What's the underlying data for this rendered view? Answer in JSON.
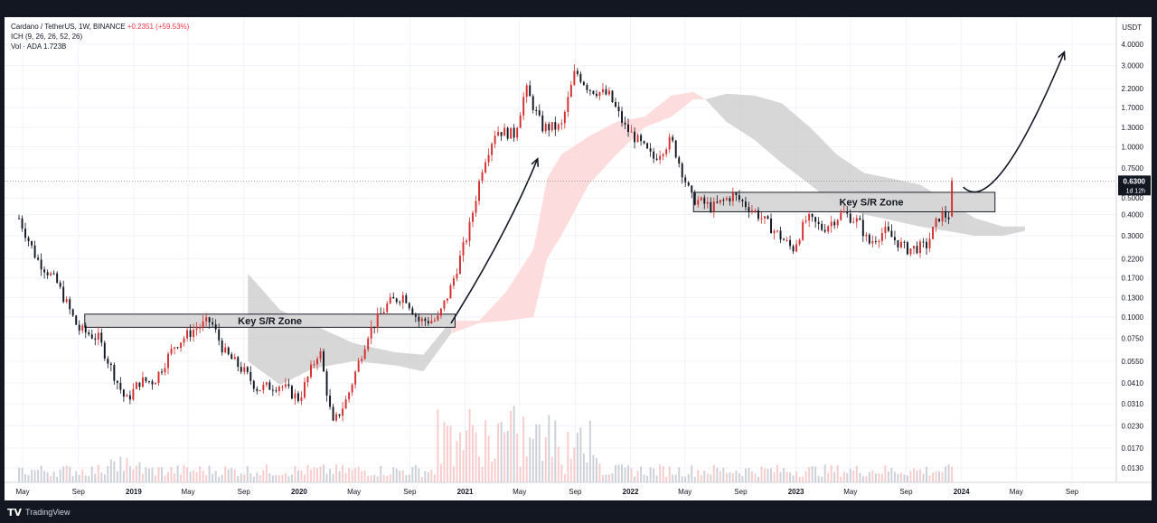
{
  "header": {
    "symbol_line": "Cardano / TetherUS, 1W, BINANCE",
    "change": "+0.2351 (+59.53%)",
    "ichimoku": "ICH (9, 26, 26, 52, 26)",
    "volume": "Vol · ADA  1.723B"
  },
  "footer": {
    "brand": "TradingView"
  },
  "price_axis": {
    "currency": "USDT",
    "ticks": [
      "4.0000",
      "3.0000",
      "2.2000",
      "1.7000",
      "1.3000",
      "1.0000",
      "0.7500",
      "0.5000",
      "0.4000",
      "0.3000",
      "0.2200",
      "0.1700",
      "0.1300",
      "0.1000",
      "0.0750",
      "0.0550",
      "0.0410",
      "0.0310",
      "0.0230",
      "0.0170",
      "0.0130"
    ],
    "last_price": "0.6300",
    "countdown": "1d 12h"
  },
  "time_axis": {
    "ticks": [
      {
        "label": "May",
        "bold": false
      },
      {
        "label": "Sep",
        "bold": false
      },
      {
        "label": "2019",
        "bold": true
      },
      {
        "label": "May",
        "bold": false
      },
      {
        "label": "Sep",
        "bold": false
      },
      {
        "label": "2020",
        "bold": true
      },
      {
        "label": "May",
        "bold": false
      },
      {
        "label": "Sep",
        "bold": false
      },
      {
        "label": "2021",
        "bold": true
      },
      {
        "label": "May",
        "bold": false
      },
      {
        "label": "Sep",
        "bold": false
      },
      {
        "label": "2022",
        "bold": true
      },
      {
        "label": "May",
        "bold": false
      },
      {
        "label": "Sep",
        "bold": false
      },
      {
        "label": "2023",
        "bold": true
      },
      {
        "label": "May",
        "bold": false
      },
      {
        "label": "Sep",
        "bold": false
      },
      {
        "label": "2024",
        "bold": true
      },
      {
        "label": "May",
        "bold": false
      },
      {
        "label": "Sep",
        "bold": false
      }
    ]
  },
  "annotations": {
    "zone_left": "Key S/R Zone",
    "zone_right": "Key S/R Zone"
  },
  "colors": {
    "up": "#089981",
    "down": "#f23645",
    "candle_up": "#131722",
    "candle_down": "#d32f2f",
    "cloud_bull": "#fcd3d6",
    "cloud_bear": "#c9c9c9",
    "zone_fill": "#d6d6d6",
    "grid": "#f0f3fa"
  },
  "chart_data": {
    "type": "candlestick",
    "title": "Cardano / TetherUS, 1W, BINANCE",
    "y_scale": "log",
    "ylim": [
      0.011,
      5.0
    ],
    "x_range": [
      "2018-05",
      "2024-10"
    ],
    "price_path": [
      [
        "2018-04-23",
        0.38
      ],
      [
        "2018-06-01",
        0.22
      ],
      [
        "2018-07-15",
        0.16
      ],
      [
        "2018-09-01",
        0.085
      ],
      [
        "2018-10-15",
        0.075
      ],
      [
        "2018-11-20",
        0.045
      ],
      [
        "2018-12-15",
        0.032
      ],
      [
        "2019-01-15",
        0.042
      ],
      [
        "2019-02-15",
        0.042
      ],
      [
        "2019-04-01",
        0.068
      ],
      [
        "2019-05-15",
        0.085
      ],
      [
        "2019-06-20",
        0.095
      ],
      [
        "2019-07-20",
        0.062
      ],
      [
        "2019-09-01",
        0.048
      ],
      [
        "2019-10-01",
        0.038
      ],
      [
        "2019-11-20",
        0.04
      ],
      [
        "2020-01-01",
        0.033
      ],
      [
        "2020-02-15",
        0.065
      ],
      [
        "2020-03-15",
        0.023
      ],
      [
        "2020-04-15",
        0.033
      ],
      [
        "2020-06-01",
        0.08
      ],
      [
        "2020-07-15",
        0.12
      ],
      [
        "2020-08-20",
        0.135
      ],
      [
        "2020-09-20",
        0.095
      ],
      [
        "2020-11-01",
        0.096
      ],
      [
        "2020-12-01",
        0.15
      ],
      [
        "2021-01-10",
        0.33
      ],
      [
        "2021-02-10",
        0.8
      ],
      [
        "2021-03-10",
        1.25
      ],
      [
        "2021-04-20",
        1.18
      ],
      [
        "2021-05-15",
        2.2
      ],
      [
        "2021-06-20",
        1.3
      ],
      [
        "2021-08-01",
        1.3
      ],
      [
        "2021-09-01",
        2.8
      ],
      [
        "2021-10-01",
        2.2
      ],
      [
        "2021-11-15",
        2.0
      ],
      [
        "2021-12-20",
        1.3
      ],
      [
        "2022-01-15",
        1.1
      ],
      [
        "2022-02-20",
        0.85
      ],
      [
        "2022-04-01",
        1.1
      ],
      [
        "2022-05-15",
        0.5
      ],
      [
        "2022-07-01",
        0.44
      ],
      [
        "2022-08-15",
        0.52
      ],
      [
        "2022-10-01",
        0.42
      ],
      [
        "2022-11-15",
        0.32
      ],
      [
        "2022-12-25",
        0.25
      ],
      [
        "2023-01-25",
        0.38
      ],
      [
        "2023-03-01",
        0.33
      ],
      [
        "2023-04-15",
        0.41
      ],
      [
        "2023-05-20",
        0.36
      ],
      [
        "2023-06-10",
        0.27
      ],
      [
        "2023-07-15",
        0.32
      ],
      [
        "2023-09-01",
        0.25
      ],
      [
        "2023-10-15",
        0.26
      ],
      [
        "2023-11-15",
        0.4
      ],
      [
        "2023-12-04",
        0.39
      ],
      [
        "2023-12-11",
        0.63
      ]
    ],
    "ichimoku_cloud": [
      [
        "2019-09-10",
        0.18,
        0.055
      ],
      [
        "2019-11-20",
        0.11,
        0.04
      ],
      [
        "2020-02-01",
        0.09,
        0.05
      ],
      [
        "2020-05-01",
        0.07,
        0.055
      ],
      [
        "2020-08-01",
        0.062,
        0.052
      ],
      [
        "2020-10-01",
        0.06,
        0.048
      ],
      [
        "2020-12-01",
        0.095,
        0.08
      ],
      [
        "2021-02-01",
        0.095,
        0.092
      ],
      [
        "2021-04-01",
        0.14,
        0.095
      ],
      [
        "2021-06-01",
        0.25,
        0.1
      ],
      [
        "2021-07-01",
        0.65,
        0.22
      ],
      [
        "2021-08-01",
        0.9,
        0.3
      ],
      [
        "2021-10-01",
        1.15,
        0.6
      ],
      [
        "2021-12-01",
        1.4,
        0.9
      ],
      [
        "2022-02-01",
        1.5,
        1.3
      ],
      [
        "2022-04-01",
        2.0,
        1.5
      ],
      [
        "2022-05-20",
        2.1,
        1.9
      ],
      [
        "2022-06-15",
        1.9,
        1.9
      ],
      [
        "2022-08-01",
        2.05,
        1.4
      ],
      [
        "2022-10-01",
        2.0,
        1.1
      ],
      [
        "2022-12-01",
        1.8,
        0.8
      ],
      [
        "2023-02-01",
        1.3,
        0.6
      ],
      [
        "2023-04-01",
        0.9,
        0.45
      ],
      [
        "2023-06-01",
        0.7,
        0.4
      ],
      [
        "2023-08-01",
        0.65,
        0.37
      ],
      [
        "2023-10-01",
        0.6,
        0.34
      ],
      [
        "2023-12-01",
        0.48,
        0.32
      ],
      [
        "2024-02-01",
        0.38,
        0.3
      ],
      [
        "2024-04-01",
        0.34,
        0.3
      ],
      [
        "2024-05-20",
        0.34,
        0.32
      ]
    ],
    "key_zones": [
      {
        "label": "Key S/R Zone",
        "start": "2018-09-15",
        "end": "2020-12-10",
        "low": 0.087,
        "high": 0.104
      },
      {
        "label": "Key S/R Zone",
        "start": "2022-05-20",
        "end": "2024-03-15",
        "low": 0.415,
        "high": 0.54
      }
    ],
    "arrows": [
      {
        "from": [
          "2020-12-01",
          0.092
        ],
        "via": [
          "2021-04-01",
          0.3
        ],
        "to": [
          "2021-06-10",
          0.85
        ]
      },
      {
        "from": [
          "2024-01-05",
          0.58
        ],
        "via": [
          "2024-03-15",
          0.38
        ],
        "to": [
          "2024-08-15",
          3.6
        ]
      }
    ]
  }
}
